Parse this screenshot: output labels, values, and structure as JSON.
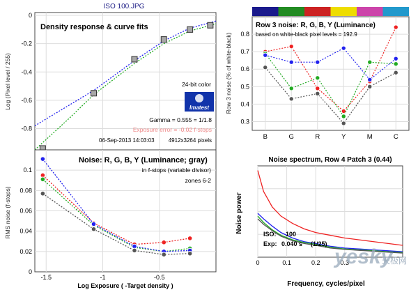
{
  "figure_title": "ISO 100.JPG",
  "colors": {
    "red": "#ee2222",
    "green": "#22aa22",
    "blue": "#2222ee",
    "gray": "#555555",
    "exposure_error": "#ee8888",
    "imatest_blue": "#1133aa"
  },
  "chart_data": [
    {
      "id": "density",
      "type": "scatter",
      "title": "Density response & curve fits",
      "xlabel": "",
      "ylabel": "Log (Pixel level / 255)",
      "xlim": [
        -1.6,
        0
      ],
      "ylim": [
        -0.95,
        0.02
      ],
      "yticks": [
        -0.8,
        -0.6,
        -0.4,
        -0.2,
        0
      ],
      "ytick_labels": [
        "-0.8",
        "-0.6",
        "-0.4",
        "-0.2",
        "0"
      ],
      "points": {
        "x": [
          -1.53,
          -1.08,
          -0.72,
          -0.46,
          -0.23,
          -0.05
        ],
        "y": [
          -0.94,
          -0.55,
          -0.31,
          -0.17,
          -0.1,
          -0.07
        ]
      },
      "fits": [
        {
          "name": "Blue fit",
          "color": "blue",
          "x": [
            -1.6,
            -1.08,
            -0.72,
            -0.46,
            -0.23,
            0
          ],
          "y": [
            -0.78,
            -0.53,
            -0.32,
            -0.18,
            -0.09,
            -0.04
          ]
        },
        {
          "name": "Green fit",
          "color": "green",
          "x": [
            -1.6,
            -1.3,
            -1.08,
            -0.72,
            -0.46,
            -0.23,
            0
          ],
          "y": [
            -0.95,
            -0.73,
            -0.56,
            -0.34,
            -0.2,
            -0.11,
            -0.06
          ]
        }
      ],
      "annotations": {
        "bit_depth": "24-bit color",
        "logo": "Imatest",
        "gamma": "Gamma = 0.555 = 1/1.8",
        "exposure_error": "Exposure error = -0.02 f-stops",
        "date": "06-Sep-2013 14:03:03",
        "pixels": "4912x3264 pixels"
      }
    },
    {
      "id": "noise_fstops",
      "type": "line",
      "title": "Noise: R, G, B, Y (Luminance; gray)",
      "subtitle": "in f-stops (variable divisor)",
      "zones": "zones 6-2",
      "xlabel": "Log Exposure ( -Target density )",
      "ylabel": "RMS noise (f-stops)",
      "xlim": [
        -1.6,
        0
      ],
      "ylim": [
        0,
        0.12
      ],
      "xticks": [
        -1.5,
        -1,
        -0.5
      ],
      "xtick_labels": [
        "-1.5",
        "-1",
        "-0.5"
      ],
      "yticks": [
        0,
        0.02,
        0.04,
        0.06,
        0.08,
        0.1
      ],
      "ytick_labels": [
        "0",
        "0.02",
        "0.04",
        "0.06",
        "0.08",
        "0.1"
      ],
      "x": [
        -1.53,
        -1.08,
        -0.72,
        -0.46,
        -0.23
      ],
      "series": [
        {
          "name": "R",
          "color": "red",
          "values": [
            0.095,
            0.048,
            0.027,
            0.029,
            0.033
          ]
        },
        {
          "name": "G",
          "color": "green",
          "values": [
            0.091,
            0.046,
            0.024,
            0.02,
            0.023
          ]
        },
        {
          "name": "B",
          "color": "blue",
          "values": [
            0.111,
            0.047,
            0.025,
            0.02,
            0.021
          ]
        },
        {
          "name": "Y",
          "color": "gray",
          "values": [
            0.077,
            0.042,
            0.021,
            0.017,
            0.018
          ]
        }
      ]
    },
    {
      "id": "row3_noise",
      "type": "line",
      "title": "Row 3 noise: R, G, B, Y (Luminance)",
      "subtitle": "based on white-black pixel levels = 192.9",
      "ylabel": "Row 3 noise (% of white-black)",
      "categories": [
        "B",
        "G",
        "R",
        "Y",
        "M",
        "C"
      ],
      "patch_colors": [
        "#1a1a8c",
        "#228b22",
        "#cc2222",
        "#eedd00",
        "#cc44aa",
        "#2299cc"
      ],
      "ylim": [
        0.25,
        0.9
      ],
      "yticks": [
        0.3,
        0.4,
        0.5,
        0.6,
        0.7,
        0.8
      ],
      "ytick_labels": [
        "0.3",
        "0.4",
        "0.5",
        "0.6",
        "0.7",
        "0.8"
      ],
      "series": [
        {
          "name": "R",
          "color": "red",
          "values": [
            0.7,
            0.73,
            0.49,
            0.36,
            0.53,
            0.84
          ]
        },
        {
          "name": "G",
          "color": "green",
          "values": [
            0.69,
            0.49,
            0.55,
            0.33,
            0.64,
            0.63
          ]
        },
        {
          "name": "B",
          "color": "blue",
          "values": [
            0.68,
            0.64,
            0.64,
            0.72,
            0.54,
            0.66
          ]
        },
        {
          "name": "Y",
          "color": "gray",
          "values": [
            0.61,
            0.43,
            0.46,
            0.29,
            0.5,
            0.58
          ]
        }
      ]
    },
    {
      "id": "noise_spectrum",
      "type": "line",
      "title": "Noise spectrum, Row 4 Patch 3 (0.44)",
      "xlabel": "Frequency, cycles/pixel",
      "ylabel": "Noise power",
      "xlim": [
        0,
        0.5
      ],
      "xticks": [
        0,
        0.1,
        0.2,
        0.3
      ],
      "xtick_labels": [
        "0",
        "0.1",
        "0.2",
        "0.3"
      ],
      "iso_label": "ISO:",
      "iso_value": "100",
      "exp_label": "Exp:",
      "exp_value": "0.040 s",
      "exp_fraction": "(1/25)",
      "watermark": "yesky",
      "watermark_cn": "天极网",
      "series": [
        {
          "name": "R",
          "color": "red",
          "x": [
            0,
            0.02,
            0.05,
            0.08,
            0.12,
            0.16,
            0.2,
            0.25,
            0.3,
            0.35,
            0.4,
            0.45,
            0.5
          ],
          "y": [
            0.95,
            0.72,
            0.55,
            0.45,
            0.37,
            0.31,
            0.27,
            0.24,
            0.21,
            0.19,
            0.17,
            0.15,
            0.13
          ]
        },
        {
          "name": "B",
          "color": "blue",
          "x": [
            0,
            0.02,
            0.05,
            0.08,
            0.12,
            0.16,
            0.2,
            0.25,
            0.3,
            0.35,
            0.4,
            0.45,
            0.5
          ],
          "y": [
            0.48,
            0.42,
            0.34,
            0.27,
            0.21,
            0.17,
            0.15,
            0.12,
            0.1,
            0.09,
            0.08,
            0.07,
            0.06
          ]
        },
        {
          "name": "G",
          "color": "green",
          "x": [
            0,
            0.02,
            0.05,
            0.08,
            0.12,
            0.16,
            0.2,
            0.25,
            0.3,
            0.35,
            0.4,
            0.45,
            0.5
          ],
          "y": [
            0.45,
            0.38,
            0.3,
            0.24,
            0.19,
            0.16,
            0.14,
            0.11,
            0.09,
            0.08,
            0.07,
            0.06,
            0.05
          ]
        },
        {
          "name": "Y",
          "color": "gray",
          "x": [
            0,
            0.02,
            0.05,
            0.08,
            0.12,
            0.16,
            0.2,
            0.25,
            0.3,
            0.35,
            0.4,
            0.45,
            0.5
          ],
          "y": [
            0.42,
            0.36,
            0.29,
            0.23,
            0.18,
            0.15,
            0.13,
            0.1,
            0.085,
            0.075,
            0.065,
            0.055,
            0.045
          ]
        }
      ]
    }
  ]
}
